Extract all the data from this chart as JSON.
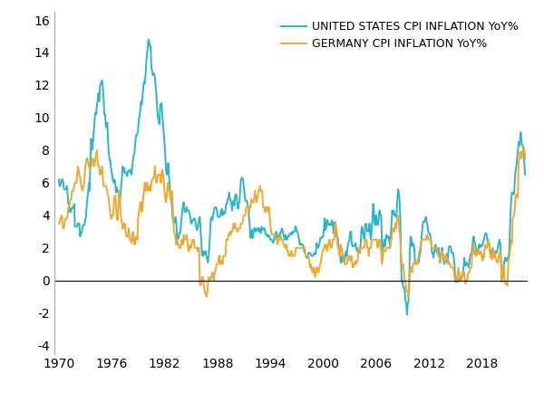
{
  "us_color": "#2ab5c8",
  "de_color": "#f0a830",
  "us_label": "UNITED STATES CPI INFLATION YoY%",
  "de_label": "GERMANY CPI INFLATION YoY%",
  "yticks": [
    -4,
    -2,
    0,
    2,
    4,
    6,
    8,
    10,
    12,
    14,
    16
  ],
  "xticks": [
    1970,
    1976,
    1982,
    1988,
    1994,
    2000,
    2006,
    2012,
    2018
  ],
  "ylim": [
    -4.5,
    16.5
  ],
  "xlim_start": 1969.5,
  "xlim_end": 2023.2,
  "background": "#ffffff",
  "linewidth": 1.4,
  "tick_fontsize": 10,
  "legend_fontsize": 9
}
